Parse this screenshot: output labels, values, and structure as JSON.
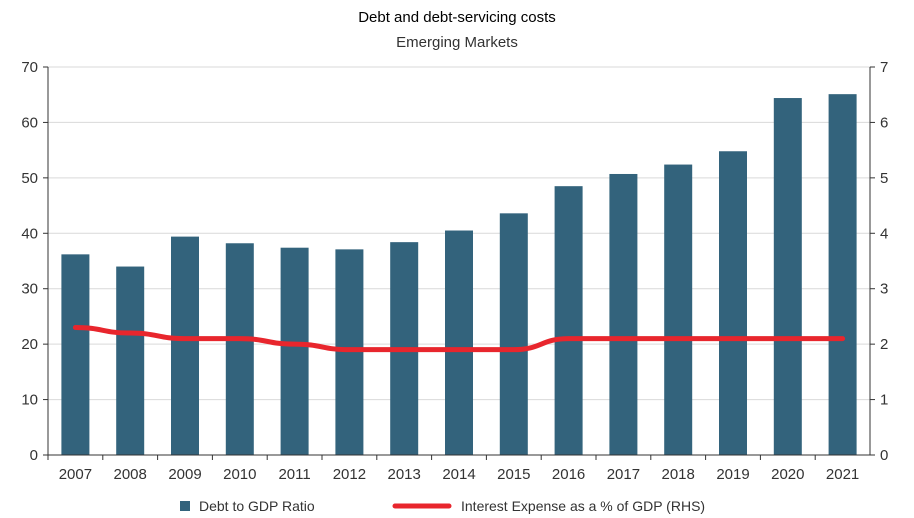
{
  "chart_data": {
    "type": "bar",
    "title": "Debt and debt-servicing costs",
    "subtitle": "Emerging Markets",
    "categories": [
      "2007",
      "2008",
      "2009",
      "2010",
      "2011",
      "2012",
      "2013",
      "2014",
      "2015",
      "2016",
      "2017",
      "2018",
      "2019",
      "2020",
      "2021"
    ],
    "series": [
      {
        "name": "Debt to GDP Ratio",
        "type": "bar",
        "axis": "left",
        "color": "#33637c",
        "values": [
          36.2,
          34.0,
          39.4,
          38.2,
          37.4,
          37.1,
          38.4,
          40.5,
          43.6,
          48.5,
          50.7,
          52.4,
          54.8,
          64.4,
          65.1
        ]
      },
      {
        "name": "Interest Expense as a % of GDP (RHS)",
        "type": "line",
        "axis": "right",
        "color": "#e8262d",
        "values": [
          2.3,
          2.2,
          2.1,
          2.1,
          2.0,
          1.9,
          1.9,
          1.9,
          1.9,
          2.1,
          2.1,
          2.1,
          2.1,
          2.1,
          2.1
        ]
      }
    ],
    "ylim_left": [
      0,
      70
    ],
    "ylim_right": [
      0,
      7
    ],
    "yticks_left": [
      "0",
      "10",
      "20",
      "30",
      "40",
      "50",
      "60",
      "70"
    ],
    "yticks_right": [
      "0",
      "1",
      "2",
      "3",
      "4",
      "5",
      "6",
      "7"
    ],
    "grid": true,
    "legend_position": "bottom"
  }
}
